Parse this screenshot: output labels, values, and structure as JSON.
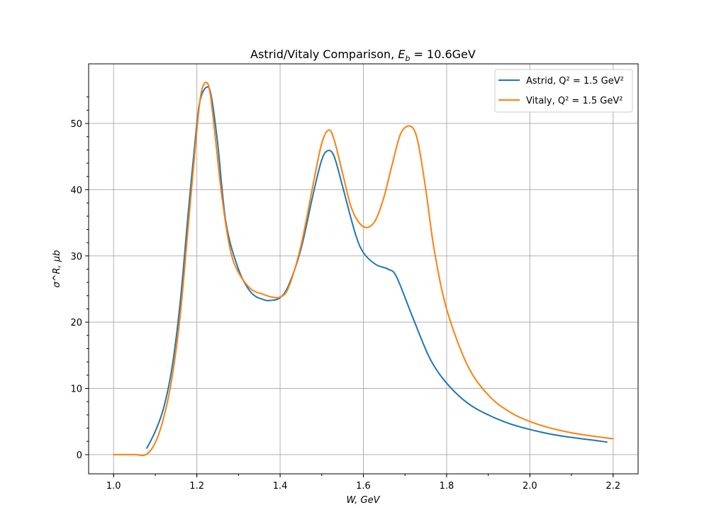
{
  "chart_data": {
    "type": "line",
    "title": "Astrid/Vitaly Comparison, E_b = 10.6GeV",
    "title_parts": {
      "prefix": "Astrid/Vitaly Comparison, ",
      "var": "E",
      "sub": "b",
      "rest": " = 10.6GeV"
    },
    "xlabel": "W, GeV",
    "ylabel": "σ^R, μb",
    "xlim": [
      0.94,
      2.26
    ],
    "ylim": [
      -2.9,
      59
    ],
    "xticks": [
      1.0,
      1.2,
      1.4,
      1.6,
      1.8,
      2.0,
      2.2
    ],
    "xtick_labels": [
      "1.0",
      "1.2",
      "1.4",
      "1.6",
      "1.8",
      "2.0",
      "2.2"
    ],
    "yticks": [
      0,
      10,
      20,
      30,
      40,
      50
    ],
    "ytick_labels": [
      "0",
      "10",
      "20",
      "30",
      "40",
      "50"
    ],
    "grid": true,
    "legend_position": "top-right",
    "legend_label_suffix": "Q² = 1.5 GeV²",
    "series": [
      {
        "name": "Astrid",
        "legend": "Astrid, Q² = 1.5 GeV²",
        "color": "#1f77b4",
        "x": [
          1.08,
          1.1,
          1.12,
          1.14,
          1.16,
          1.18,
          1.2,
          1.21,
          1.225,
          1.235,
          1.25,
          1.27,
          1.3,
          1.33,
          1.36,
          1.38,
          1.4,
          1.42,
          1.45,
          1.48,
          1.5,
          1.515,
          1.53,
          1.55,
          1.58,
          1.6,
          1.63,
          1.66,
          1.68,
          1.72,
          1.76,
          1.8,
          1.85,
          1.9,
          1.95,
          2.0,
          2.05,
          2.1,
          2.15,
          2.185
        ],
        "values": [
          1.0,
          3.5,
          7.0,
          13.0,
          23.0,
          37.0,
          50.0,
          54.0,
          55.5,
          54.0,
          47.0,
          35.0,
          28.0,
          24.5,
          23.4,
          23.3,
          23.7,
          25.5,
          31.0,
          39.5,
          44.5,
          45.9,
          45.0,
          40.5,
          33.5,
          30.5,
          28.7,
          28.0,
          26.8,
          20.5,
          14.5,
          10.8,
          7.8,
          6.0,
          4.7,
          3.8,
          3.1,
          2.6,
          2.2,
          1.9
        ]
      },
      {
        "name": "Vitaly",
        "legend": "Vitaly, Q² = 1.5 GeV²",
        "color": "#ff7f0e",
        "x": [
          1.0,
          1.05,
          1.078,
          1.1,
          1.12,
          1.14,
          1.16,
          1.18,
          1.2,
          1.21,
          1.222,
          1.232,
          1.245,
          1.26,
          1.28,
          1.3,
          1.33,
          1.36,
          1.38,
          1.4,
          1.42,
          1.45,
          1.48,
          1.5,
          1.517,
          1.53,
          1.55,
          1.57,
          1.59,
          1.61,
          1.63,
          1.65,
          1.67,
          1.69,
          1.713,
          1.73,
          1.75,
          1.77,
          1.8,
          1.85,
          1.9,
          1.95,
          2.0,
          2.05,
          2.1,
          2.15,
          2.2
        ],
        "values": [
          0,
          0,
          0,
          1.8,
          5.5,
          11.5,
          21.0,
          35.0,
          49.0,
          54.5,
          56.2,
          54.5,
          47.5,
          39.0,
          31.0,
          27.5,
          25.0,
          24.2,
          23.8,
          23.8,
          25.2,
          31.5,
          41.0,
          47.0,
          49.0,
          47.5,
          42.5,
          37.5,
          35.0,
          34.3,
          35.5,
          39.0,
          44.0,
          48.5,
          49.6,
          47.5,
          40.0,
          31.0,
          22.0,
          13.5,
          9.0,
          6.5,
          5.0,
          4.0,
          3.3,
          2.8,
          2.4
        ]
      }
    ]
  }
}
